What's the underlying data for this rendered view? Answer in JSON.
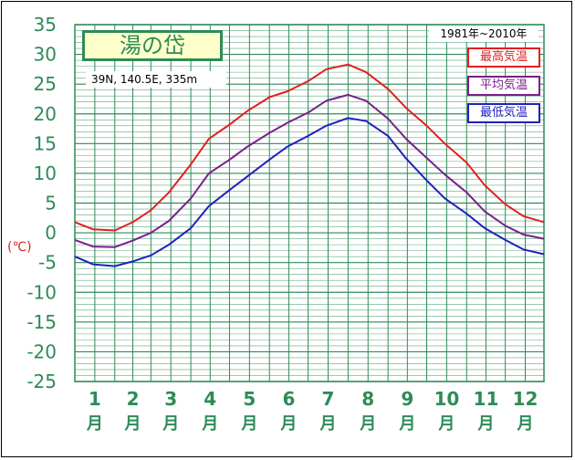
{
  "chart_data": {
    "type": "line",
    "title": "湯の岱",
    "subtitle": "39N, 140.5E, 335m",
    "period": "1981年~2010年",
    "ylabel": "(℃)",
    "ylim": [
      -25,
      35
    ],
    "yticks": [
      "35",
      "30",
      "25",
      "20",
      "15",
      "10",
      "5",
      "0",
      "-5",
      "-10",
      "-15",
      "-20",
      "-25"
    ],
    "categories": [
      "1月",
      "2月",
      "3月",
      "4月",
      "5月",
      "6月",
      "7月",
      "8月",
      "9月",
      "10月",
      "11月",
      "12月"
    ],
    "month_numbers": [
      "1",
      "2",
      "3",
      "4",
      "5",
      "6",
      "7",
      "8",
      "9",
      "10",
      "11",
      "12"
    ],
    "month_suffix": "月",
    "legend_placement": "top-right",
    "grid": true,
    "series": [
      {
        "name": "最高気温",
        "color": "#e02020",
        "x": [
          1,
          15,
          32,
          46,
          60,
          74,
          91,
          105,
          121,
          135,
          152,
          166,
          182,
          196,
          213,
          227,
          244,
          258,
          274,
          288,
          305,
          319,
          335,
          349,
          365
        ],
        "values": [
          1.8,
          0.6,
          0.4,
          1.8,
          3.8,
          6.8,
          11.5,
          15.8,
          18.2,
          20.5,
          22.8,
          23.8,
          25.5,
          27.5,
          28.3,
          27.0,
          24.2,
          21.0,
          18.0,
          15.0,
          11.8,
          8.0,
          4.8,
          2.8,
          1.8
        ]
      },
      {
        "name": "平均気温",
        "color": "#7a1f8a",
        "x": [
          1,
          15,
          32,
          46,
          60,
          74,
          91,
          105,
          121,
          135,
          152,
          166,
          182,
          196,
          213,
          227,
          244,
          258,
          274,
          288,
          305,
          319,
          335,
          349,
          365
        ],
        "values": [
          -1.2,
          -2.3,
          -2.4,
          -1.3,
          0.0,
          2.0,
          5.8,
          10.0,
          12.3,
          14.5,
          16.8,
          18.5,
          20.2,
          22.2,
          23.2,
          22.2,
          19.2,
          15.8,
          12.6,
          9.8,
          6.8,
          3.6,
          1.2,
          -0.3,
          -1.0
        ]
      },
      {
        "name": "最低気温",
        "color": "#2020c0",
        "x": [
          1,
          15,
          32,
          46,
          60,
          74,
          91,
          105,
          121,
          135,
          152,
          166,
          182,
          196,
          213,
          227,
          244,
          258,
          274,
          288,
          305,
          319,
          335,
          349,
          365
        ],
        "values": [
          -4.0,
          -5.3,
          -5.6,
          -4.8,
          -3.8,
          -2.0,
          0.8,
          4.5,
          7.2,
          9.5,
          12.3,
          14.5,
          16.3,
          18.0,
          19.3,
          18.8,
          16.3,
          12.5,
          8.8,
          5.8,
          3.2,
          0.8,
          -1.2,
          -2.8,
          -3.6
        ]
      }
    ],
    "colors": {
      "axis_text": "#2e8b57",
      "grid": "#2e8b57",
      "ylabel": "#e02020"
    }
  }
}
